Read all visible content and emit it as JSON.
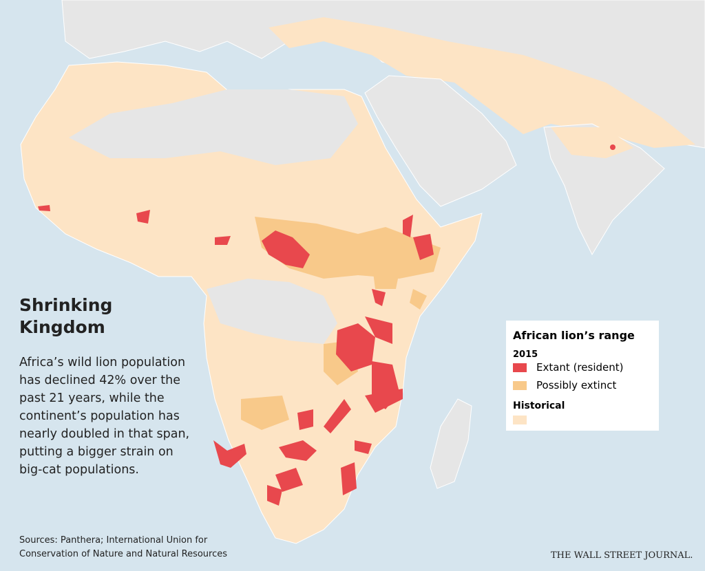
{
  "title": "Shrinking Kingdom",
  "body": "Africa’s wild lion population has declined 42% over the past 21 years, while the continent’s population has nearly doubled in that span, putting a bigger strain on big-cat populations.",
  "legend": {
    "title": "African lion’s range",
    "year": "2015",
    "items": [
      "Extant (resident)",
      "Possibly extinct",
      "Historical"
    ]
  },
  "source": "Sources: Panthera; International Union for Conservation of Nature and Natural Resources",
  "credit": "THE WALL STREET JOURNAL."
}
